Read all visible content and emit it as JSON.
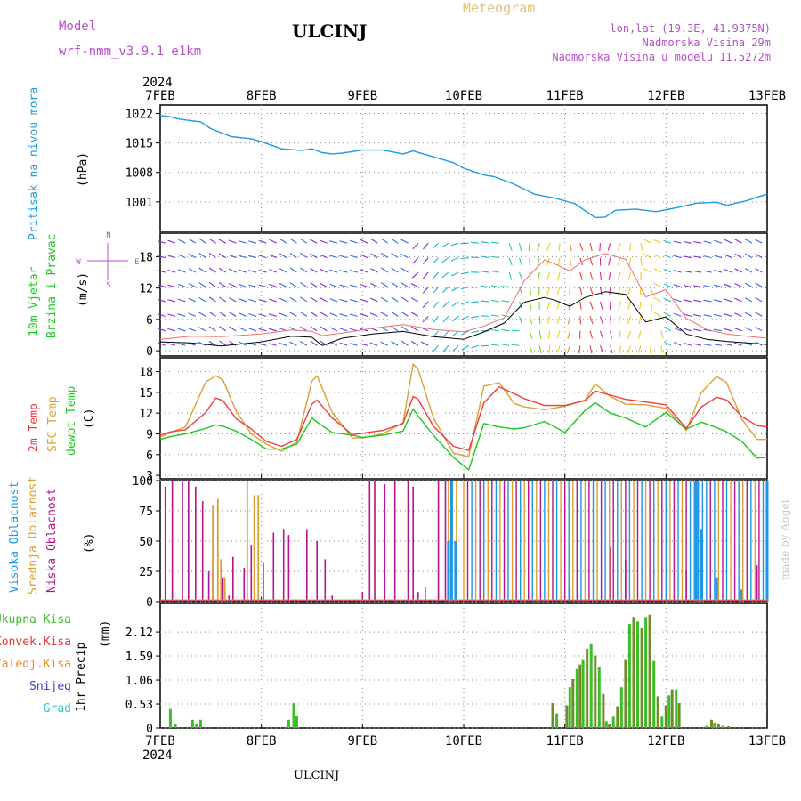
{
  "header": {
    "model_label": "Model",
    "model_name": "wrf-nmm_v3.9.1 e1km",
    "station": "ULCINJ",
    "product": "Meteogram",
    "lonlat": "lon,lat (19.3E, 41.9375N)",
    "elevation": "Nadmorska Visina 29m",
    "model_elevation": "Nadmorska Visina u modelu 11.5272m",
    "footer_station": "ULCINJ",
    "credit": "made by Angel"
  },
  "time_axis": {
    "year": "2024",
    "ticks": [
      "7FEB",
      "8FEB",
      "9FEB",
      "10FEB",
      "11FEB",
      "12FEB",
      "13FEB"
    ]
  },
  "colors": {
    "pressure": "#1e9be0",
    "temp2m": "#f03c3c",
    "sfc_temp": "#dca032",
    "dewpt": "#1ec81e",
    "low_cloud": "#b4148c",
    "mid_cloud": "#dca032",
    "high_cloud": "#1e96e6",
    "total_precip": "#3cbe28",
    "conv_precip": "#f03232",
    "frozen_precip": "#f08c1e",
    "snow": "#3c3cd2",
    "graupel": "#28c8c8",
    "title_purple": "#b450c8"
  },
  "chart_data": [
    {
      "type": "line",
      "name": "pressure",
      "ylabel": "Pritisak na nivou mora",
      "unit": "(hPa)",
      "ylim": [
        994,
        1024
      ],
      "yticks": [
        1001,
        1008,
        1015,
        1022
      ],
      "x": [
        0,
        0.08,
        0.2,
        0.4,
        0.5,
        0.7,
        0.9,
        1.0,
        1.2,
        1.4,
        1.5,
        1.6,
        1.7,
        1.8,
        2.0,
        2.2,
        2.4,
        2.5,
        2.7,
        2.9,
        3.0,
        3.2,
        3.3,
        3.5,
        3.7,
        3.9,
        4.1,
        4.2,
        4.3,
        4.4,
        4.5,
        4.7,
        4.9,
        5.1,
        5.3,
        5.5,
        5.6,
        5.8,
        6.0
      ],
      "values": [
        1021.5,
        1021.3,
        1020.6,
        1020.0,
        1018.4,
        1016.5,
        1016.0,
        1015.3,
        1013.6,
        1013.2,
        1013.6,
        1012.7,
        1012.4,
        1012.6,
        1013.3,
        1013.3,
        1012.4,
        1013.1,
        1011.7,
        1010.3,
        1009.0,
        1007.4,
        1007.0,
        1005.2,
        1002.8,
        1001.9,
        1000.6,
        998.9,
        997.3,
        997.4,
        999.0,
        999.3,
        998.7,
        999.6,
        1000.7,
        1000.9,
        1000.2,
        1001.3,
        1002.9
      ]
    },
    {
      "type": "line",
      "name": "wind",
      "ylabel": "10m Vjetar",
      "ylabel2": "Brzina i Pravac",
      "unit": "(m/s)",
      "ylim": [
        -1,
        22.5
      ],
      "yticks": [
        0,
        6,
        12,
        18
      ],
      "x": [
        0,
        0.3,
        0.6,
        1.0,
        1.3,
        1.5,
        1.6,
        1.8,
        2.1,
        2.4,
        2.7,
        3.0,
        3.2,
        3.4,
        3.6,
        3.8,
        3.9,
        4.05,
        4.2,
        4.4,
        4.6,
        4.8,
        5.0,
        5.2,
        5.4,
        5.6,
        5.8,
        6.0
      ],
      "series": [
        {
          "values": [
            1.7,
            1.5,
            0.9,
            1.7,
            2.8,
            2.6,
            1.0,
            2.4,
            3.2,
            3.7,
            2.7,
            2.2,
            3.6,
            5.3,
            9.3,
            10.2,
            9.7,
            8.5,
            10.2,
            11.3,
            10.8,
            5.5,
            6.5,
            3.2,
            2.2,
            1.8,
            1.5,
            1.2
          ]
        },
        {
          "values": [
            2.2,
            2.8,
            2.7,
            3.2,
            4.0,
            3.7,
            2.9,
            3.4,
            4.3,
            5.0,
            4.1,
            3.6,
            4.7,
            6.3,
            13.4,
            17.4,
            16.6,
            15.3,
            17.4,
            18.6,
            17.5,
            10.3,
            11.7,
            6.2,
            4.1,
            3.2,
            2.8,
            2.4
          ]
        }
      ],
      "legend_compass": [
        "N",
        "S",
        "W",
        "E"
      ]
    },
    {
      "type": "line",
      "name": "temperature",
      "ylabels": [
        "2m Temp",
        "SFC Temp",
        "dewpt Temp"
      ],
      "unit": "(C)",
      "ylim": [
        2.5,
        20
      ],
      "yticks": [
        3,
        6,
        9,
        12,
        15,
        18
      ],
      "x": [
        0,
        0.1,
        0.25,
        0.45,
        0.55,
        0.62,
        0.75,
        0.9,
        1.05,
        1.2,
        1.35,
        1.5,
        1.55,
        1.7,
        1.9,
        2.0,
        2.2,
        2.4,
        2.5,
        2.55,
        2.7,
        2.9,
        3.05,
        3.2,
        3.35,
        3.5,
        3.6,
        3.8,
        4.0,
        4.2,
        4.3,
        4.45,
        4.6,
        4.8,
        5.0,
        5.2,
        5.35,
        5.5,
        5.6,
        5.75,
        5.9,
        6.0
      ],
      "series": [
        {
          "name": "2m Temp",
          "values": [
            8.8,
            9.3,
            9.6,
            12.1,
            14.2,
            13.8,
            11.2,
            9.7,
            7.9,
            7.2,
            8.2,
            13.3,
            13.9,
            11.3,
            8.9,
            9.1,
            9.5,
            10.5,
            14.4,
            14.0,
            10.1,
            7.2,
            6.6,
            13.5,
            15.8,
            14.8,
            14.1,
            13.1,
            13.1,
            13.8,
            15.2,
            14.6,
            14.0,
            13.6,
            13.2,
            9.8,
            12.9,
            14.3,
            13.9,
            11.5,
            10.2,
            10.0
          ]
        },
        {
          "name": "SFC Temp",
          "values": [
            8.5,
            9.2,
            10.0,
            16.5,
            17.4,
            16.8,
            12.3,
            9.0,
            7.5,
            6.5,
            7.8,
            16.6,
            17.4,
            12.1,
            8.4,
            8.4,
            9.0,
            10.6,
            19.1,
            18.3,
            11.3,
            6.2,
            5.7,
            15.9,
            16.4,
            13.4,
            12.9,
            12.5,
            13.0,
            13.9,
            16.2,
            14.4,
            13.3,
            13.2,
            12.7,
            9.5,
            15.0,
            17.3,
            16.4,
            11.1,
            8.2,
            8.2
          ]
        },
        {
          "name": "dewpt Temp",
          "values": [
            8.2,
            8.6,
            9.0,
            9.8,
            10.3,
            10.1,
            9.4,
            8.2,
            6.8,
            6.8,
            7.5,
            11.3,
            10.7,
            9.2,
            8.8,
            8.5,
            8.8,
            9.4,
            12.6,
            11.6,
            8.8,
            5.6,
            3.8,
            10.5,
            10.0,
            9.7,
            9.9,
            10.8,
            9.2,
            12.4,
            13.5,
            12.0,
            11.3,
            10.0,
            12.1,
            9.7,
            10.7,
            9.9,
            9.3,
            7.9,
            5.5,
            5.6
          ]
        }
      ]
    },
    {
      "type": "bar",
      "name": "cloud_cover",
      "ylabels": [
        "Visoka Oblacnost",
        "Srednja Oblacnost",
        "Niska Oblacnost"
      ],
      "unit": "(%)",
      "ylim": [
        0,
        100
      ],
      "yticks": [
        0,
        25,
        50,
        75,
        100
      ],
      "low": [
        [
          0.05,
          95
        ],
        [
          0.12,
          100
        ],
        [
          0.22,
          100
        ],
        [
          0.28,
          100
        ],
        [
          0.35,
          95
        ],
        [
          0.42,
          83
        ],
        [
          0.48,
          25
        ],
        [
          0.52,
          30
        ],
        [
          0.62,
          20
        ],
        [
          0.68,
          5
        ],
        [
          0.72,
          37
        ],
        [
          0.83,
          28
        ],
        [
          0.9,
          47
        ],
        [
          1.02,
          32
        ],
        [
          1.12,
          57
        ],
        [
          1.22,
          60
        ],
        [
          1.27,
          55
        ],
        [
          1.45,
          60
        ],
        [
          1.55,
          50
        ],
        [
          1.63,
          35
        ],
        [
          1.7,
          5
        ],
        [
          1.9,
          2
        ],
        [
          2.0,
          8
        ],
        [
          2.07,
          100
        ],
        [
          2.12,
          100
        ],
        [
          2.22,
          97
        ],
        [
          2.32,
          100
        ],
        [
          2.45,
          100
        ],
        [
          2.5,
          95
        ],
        [
          2.55,
          8
        ],
        [
          2.62,
          12
        ],
        [
          2.75,
          100
        ],
        [
          2.82,
          100
        ],
        [
          4.05,
          12
        ],
        [
          4.45,
          45
        ],
        [
          4.6,
          35
        ],
        [
          5.2,
          25
        ],
        [
          5.9,
          30
        ]
      ],
      "mid": [
        [
          0.52,
          80
        ],
        [
          0.57,
          85
        ],
        [
          0.6,
          35
        ],
        [
          0.64,
          20
        ],
        [
          0.86,
          100
        ],
        [
          0.93,
          88
        ],
        [
          0.97,
          88
        ],
        [
          2.85,
          100
        ],
        [
          2.93,
          100
        ]
      ],
      "high": [
        [
          2.85,
          50
        ],
        [
          2.88,
          100
        ],
        [
          2.92,
          50
        ],
        [
          5.3,
          100
        ],
        [
          5.35,
          60
        ],
        [
          5.5,
          20
        ],
        [
          5.75,
          10
        ],
        [
          6.0,
          100
        ]
      ],
      "dense_start": 3.0,
      "dense_end": 6.0
    },
    {
      "type": "bar",
      "name": "precipitation",
      "ylabel": "1hr Precip",
      "unit": "(mm)",
      "ylim": [
        0,
        2.75
      ],
      "yticks": [
        0,
        0.53,
        1.06,
        1.59,
        2.12
      ],
      "legend": [
        "Ukupna Kisa",
        "Konvek.Kisa",
        "Zaledj.Kisa",
        "Snijeg",
        "Grad"
      ],
      "total": [
        [
          0.1,
          0.42
        ],
        [
          0.15,
          0.08
        ],
        [
          0.32,
          0.18
        ],
        [
          0.36,
          0.1
        ],
        [
          0.4,
          0.18
        ],
        [
          1.27,
          0.18
        ],
        [
          1.32,
          0.55
        ],
        [
          1.35,
          0.27
        ],
        [
          3.88,
          0.55
        ],
        [
          3.92,
          0.32
        ],
        [
          4.02,
          0.5
        ],
        [
          4.05,
          0.9
        ],
        [
          4.08,
          1.08
        ],
        [
          4.12,
          1.3
        ],
        [
          4.15,
          1.4
        ],
        [
          4.18,
          1.5
        ],
        [
          4.22,
          1.75
        ],
        [
          4.26,
          1.85
        ],
        [
          4.3,
          1.6
        ],
        [
          4.34,
          1.35
        ],
        [
          4.38,
          0.75
        ],
        [
          4.41,
          0.15
        ],
        [
          4.44,
          0.08
        ],
        [
          4.48,
          0.25
        ],
        [
          4.52,
          0.48
        ],
        [
          4.56,
          0.9
        ],
        [
          4.6,
          1.5
        ],
        [
          4.64,
          2.3
        ],
        [
          4.68,
          2.45
        ],
        [
          4.72,
          2.35
        ],
        [
          4.76,
          2.2
        ],
        [
          4.8,
          2.45
        ],
        [
          4.84,
          2.5
        ],
        [
          4.88,
          1.48
        ],
        [
          4.92,
          0.7
        ],
        [
          4.96,
          0.25
        ],
        [
          5.0,
          0.5
        ],
        [
          5.03,
          0.72
        ],
        [
          5.06,
          0.85
        ],
        [
          5.1,
          0.85
        ],
        [
          5.13,
          0.55
        ],
        [
          5.4,
          0.05
        ],
        [
          5.45,
          0.18
        ],
        [
          5.48,
          0.12
        ],
        [
          5.52,
          0.1
        ],
        [
          5.56,
          0.05
        ],
        [
          5.62,
          0.04
        ]
      ]
    }
  ]
}
